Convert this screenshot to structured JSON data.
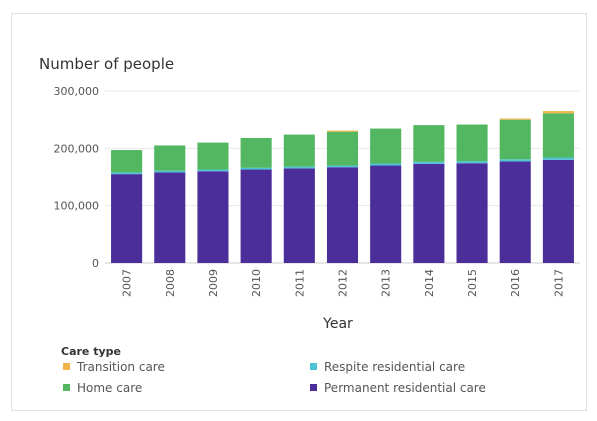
{
  "chart_data": {
    "type": "bar",
    "stacked": true,
    "ylabel": "Number of people",
    "xlabel": "Year",
    "ylim": [
      0,
      300000
    ],
    "yticks": [
      0,
      100000,
      200000,
      300000
    ],
    "ytick_labels": [
      "0",
      "100,000",
      "200,000",
      "300,000"
    ],
    "grid": "horizontal",
    "legend_position": "bottom",
    "legend_title": "Care type",
    "categories": [
      "2007",
      "2008",
      "2009",
      "2010",
      "2011",
      "2012",
      "2013",
      "2014",
      "2015",
      "2016",
      "2017"
    ],
    "series": [
      {
        "name": "Permanent residential care",
        "color": "#4b2e9a",
        "values": [
          155000,
          158000,
          160000,
          163000,
          165000,
          167000,
          170000,
          173000,
          174000,
          177000,
          180000
        ]
      },
      {
        "name": "Respite residential care",
        "color": "#4fc3d6",
        "values": [
          3000,
          3000,
          3000,
          3000,
          3000,
          3000,
          3500,
          3500,
          3500,
          4000,
          4000
        ]
      },
      {
        "name": "Home care",
        "color": "#52b760",
        "values": [
          39000,
          44000,
          47000,
          52000,
          56000,
          59000,
          61000,
          64000,
          64000,
          69000,
          77000
        ]
      },
      {
        "name": "Transition care",
        "color": "#f0b54a",
        "values": [
          0,
          0,
          0,
          0,
          0,
          2000,
          0,
          0,
          0,
          2000,
          4000
        ]
      }
    ],
    "legend_order": [
      "Transition care",
      "Respite residential care",
      "Home care",
      "Permanent residential care"
    ]
  }
}
